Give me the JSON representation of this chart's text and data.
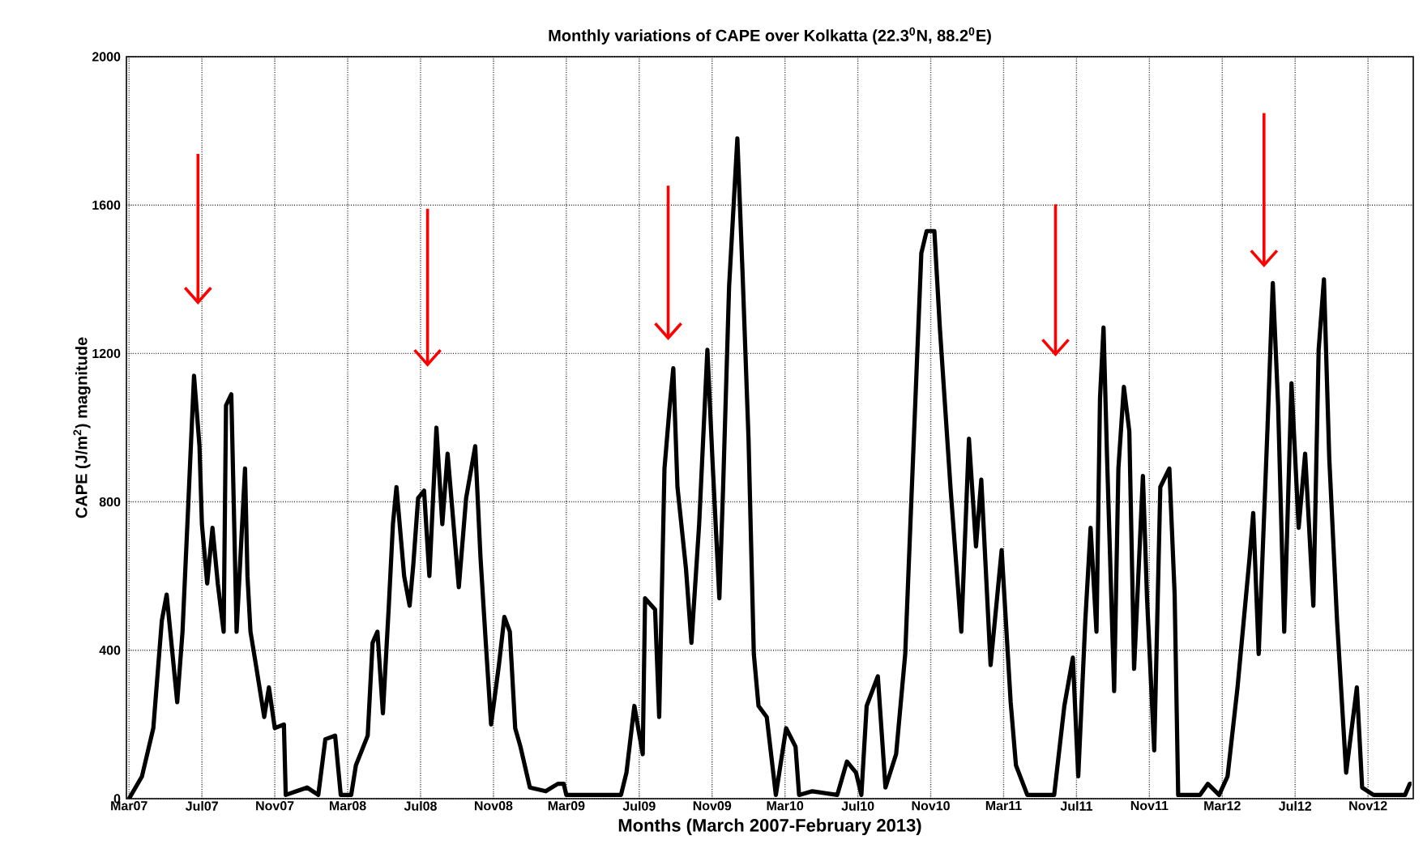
{
  "chart_data": {
    "type": "line",
    "title": "Monthly variations of CAPE over Kolkatta (22.3$^{0}$N, 88.2$^{0}$E)",
    "xlabel": "Months (March 2007-February 2013)",
    "ylabel": "CAPE (J/m$^{2}$) magnitude",
    "xlim": [
      "2007-02-25",
      "2013-01-16"
    ],
    "ylim": [
      0,
      2000
    ],
    "xticks": [
      {
        "value": "2007-03",
        "label": "Mar07"
      },
      {
        "value": "2007-07",
        "label": "Jul07"
      },
      {
        "value": "2007-11",
        "label": "Nov07"
      },
      {
        "value": "2008-03",
        "label": "Mar08"
      },
      {
        "value": "2008-07",
        "label": "Jul08"
      },
      {
        "value": "2008-11",
        "label": "Nov08"
      },
      {
        "value": "2009-03",
        "label": "Mar09"
      },
      {
        "value": "2009-07",
        "label": "Jul09"
      },
      {
        "value": "2009-11",
        "label": "Nov09"
      },
      {
        "value": "2010-03",
        "label": "Mar10"
      },
      {
        "value": "2010-07",
        "label": "Jul10"
      },
      {
        "value": "2010-11",
        "label": "Nov10"
      },
      {
        "value": "2011-03",
        "label": "Mar11"
      },
      {
        "value": "2011-07",
        "label": "Jul11"
      },
      {
        "value": "2011-11",
        "label": "Nov11"
      },
      {
        "value": "2012-03",
        "label": "Mar12"
      },
      {
        "value": "2012-07",
        "label": "Jul12"
      },
      {
        "value": "2012-11",
        "label": "Nov12"
      }
    ],
    "yticks": [
      0,
      400,
      800,
      1200,
      1600,
      2000
    ],
    "grid": true,
    "line_style": "solid",
    "series": [
      {
        "color": "#000000",
        "x": [
          "2007-03-01",
          "2007-03-23",
          "2007-04-11",
          "2007-04-25",
          "2007-05-03",
          "2007-05-21",
          "2007-05-30",
          "2007-06-09",
          "2007-06-18",
          "2007-06-27",
          "2007-07-01",
          "2007-07-10",
          "2007-07-19",
          "2007-07-28",
          "2007-08-07",
          "2007-08-11",
          "2007-08-20",
          "2007-08-29",
          "2007-09-12",
          "2007-09-16",
          "2007-09-21",
          "2007-09-30",
          "2007-10-14",
          "2007-10-22",
          "2007-11-01",
          "2007-11-16",
          "2007-11-19",
          "2007-12-07",
          "2007-12-25",
          "2008-01-13",
          "2008-01-25",
          "2008-02-10",
          "2008-02-19",
          "2008-03-07",
          "2008-03-15",
          "2008-04-04",
          "2008-04-12",
          "2008-04-20",
          "2008-04-29",
          "2008-05-09",
          "2008-05-16",
          "2008-05-22",
          "2008-06-04",
          "2008-06-13",
          "2008-06-19",
          "2008-06-27",
          "2008-07-07",
          "2008-07-16",
          "2008-07-28",
          "2008-08-07",
          "2008-08-16",
          "2008-09-04",
          "2008-09-16",
          "2008-10-01",
          "2008-10-10",
          "2008-10-19",
          "2008-10-28",
          "2008-11-10",
          "2008-11-19",
          "2008-11-28",
          "2008-12-07",
          "2008-12-16",
          "2009-01-01",
          "2009-01-28",
          "2009-02-16",
          "2009-02-25",
          "2009-03-01",
          "2009-06-01",
          "2009-06-10",
          "2009-06-23",
          "2009-07-07",
          "2009-07-11",
          "2009-07-28",
          "2009-08-04",
          "2009-08-13",
          "2009-08-22",
          "2009-08-28",
          "2009-09-04",
          "2009-09-18",
          "2009-09-27",
          "2009-10-10",
          "2009-10-24",
          "2009-11-02",
          "2009-11-13",
          "2009-11-19",
          "2009-11-29",
          "2009-12-13",
          "2009-12-22",
          "2010-01-01",
          "2010-01-10",
          "2010-01-18",
          "2010-02-01",
          "2010-02-15",
          "2010-03-03",
          "2010-03-19",
          "2010-03-25",
          "2010-04-16",
          "2010-05-28",
          "2010-06-13",
          "2010-06-28",
          "2010-07-07",
          "2010-07-16",
          "2010-08-04",
          "2010-08-17",
          "2010-09-04",
          "2010-09-19",
          "2010-09-28",
          "2010-10-16",
          "2010-10-25",
          "2010-11-07",
          "2010-11-16",
          "2010-12-04",
          "2010-12-22",
          "2011-01-04",
          "2011-01-16",
          "2011-01-25",
          "2011-02-09",
          "2011-02-26",
          "2011-03-13",
          "2011-03-22",
          "2011-04-10",
          "2011-05-25",
          "2011-06-11",
          "2011-06-25",
          "2011-07-04",
          "2011-07-16",
          "2011-07-25",
          "2011-08-04",
          "2011-08-10",
          "2011-08-16",
          "2011-08-22",
          "2011-09-03",
          "2011-09-10",
          "2011-09-19",
          "2011-09-28",
          "2011-10-06",
          "2011-10-21",
          "2011-10-28",
          "2011-11-09",
          "2011-11-19",
          "2011-12-04",
          "2011-12-13",
          "2011-12-19",
          "2012-01-25",
          "2012-02-07",
          "2012-02-25",
          "2012-03-10",
          "2012-03-27",
          "2012-04-16",
          "2012-04-22",
          "2012-05-01",
          "2012-05-16",
          "2012-05-25",
          "2012-06-03",
          "2012-06-13",
          "2012-06-25",
          "2012-07-07",
          "2012-07-18",
          "2012-08-01",
          "2012-08-10",
          "2012-08-19",
          "2012-08-28",
          "2012-09-10",
          "2012-09-25",
          "2012-10-13",
          "2012-10-22",
          "2012-11-10",
          "2013-01-02",
          "2013-01-10",
          "2013-01-13"
        ],
        "values": [
          0,
          60,
          190,
          480,
          550,
          260,
          450,
          810,
          1140,
          950,
          740,
          580,
          730,
          580,
          450,
          1060,
          1090,
          450,
          890,
          600,
          450,
          360,
          220,
          300,
          190,
          200,
          10,
          20,
          30,
          10,
          160,
          170,
          10,
          10,
          90,
          170,
          420,
          450,
          230,
          520,
          740,
          840,
          600,
          520,
          630,
          810,
          830,
          600,
          1000,
          740,
          930,
          570,
          810,
          950,
          650,
          420,
          200,
          360,
          490,
          450,
          190,
          140,
          30,
          20,
          40,
          40,
          10,
          10,
          70,
          250,
          120,
          540,
          510,
          220,
          890,
          1060,
          1160,
          840,
          620,
          420,
          740,
          1210,
          900,
          540,
          830,
          1380,
          1780,
          1410,
          970,
          390,
          250,
          220,
          10,
          190,
          140,
          10,
          20,
          10,
          100,
          70,
          10,
          250,
          330,
          30,
          120,
          390,
          760,
          1470,
          1530,
          1530,
          1270,
          830,
          450,
          970,
          680,
          860,
          360,
          670,
          260,
          90,
          10,
          10,
          250,
          380,
          60,
          480,
          730,
          450,
          1080,
          1270,
          920,
          290,
          890,
          1110,
          990,
          350,
          870,
          540,
          130,
          840,
          890,
          550,
          10,
          10,
          40,
          10,
          60,
          300,
          650,
          770,
          390,
          1000,
          1390,
          1060,
          450,
          1120,
          730,
          930,
          520,
          1210,
          1400,
          920,
          480,
          70,
          300,
          30,
          10,
          10,
          40,
          40
        ]
      }
    ]
  }
}
